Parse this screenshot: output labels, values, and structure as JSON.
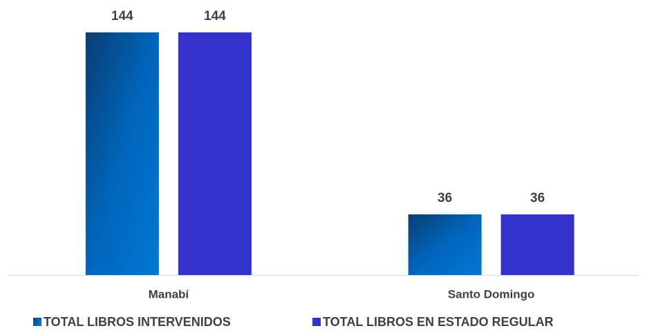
{
  "chart_data": {
    "type": "bar",
    "categories": [
      "Manabí",
      "Santo Domingo"
    ],
    "series": [
      {
        "name": "TOTAL LIBROS INTERVENIDOS",
        "color": "#0066bb",
        "values": [
          144,
          36
        ]
      },
      {
        "name": "TOTAL LIBROS EN ESTADO REGULAR",
        "color": "#3333cc",
        "values": [
          144,
          36
        ]
      }
    ]
  }
}
